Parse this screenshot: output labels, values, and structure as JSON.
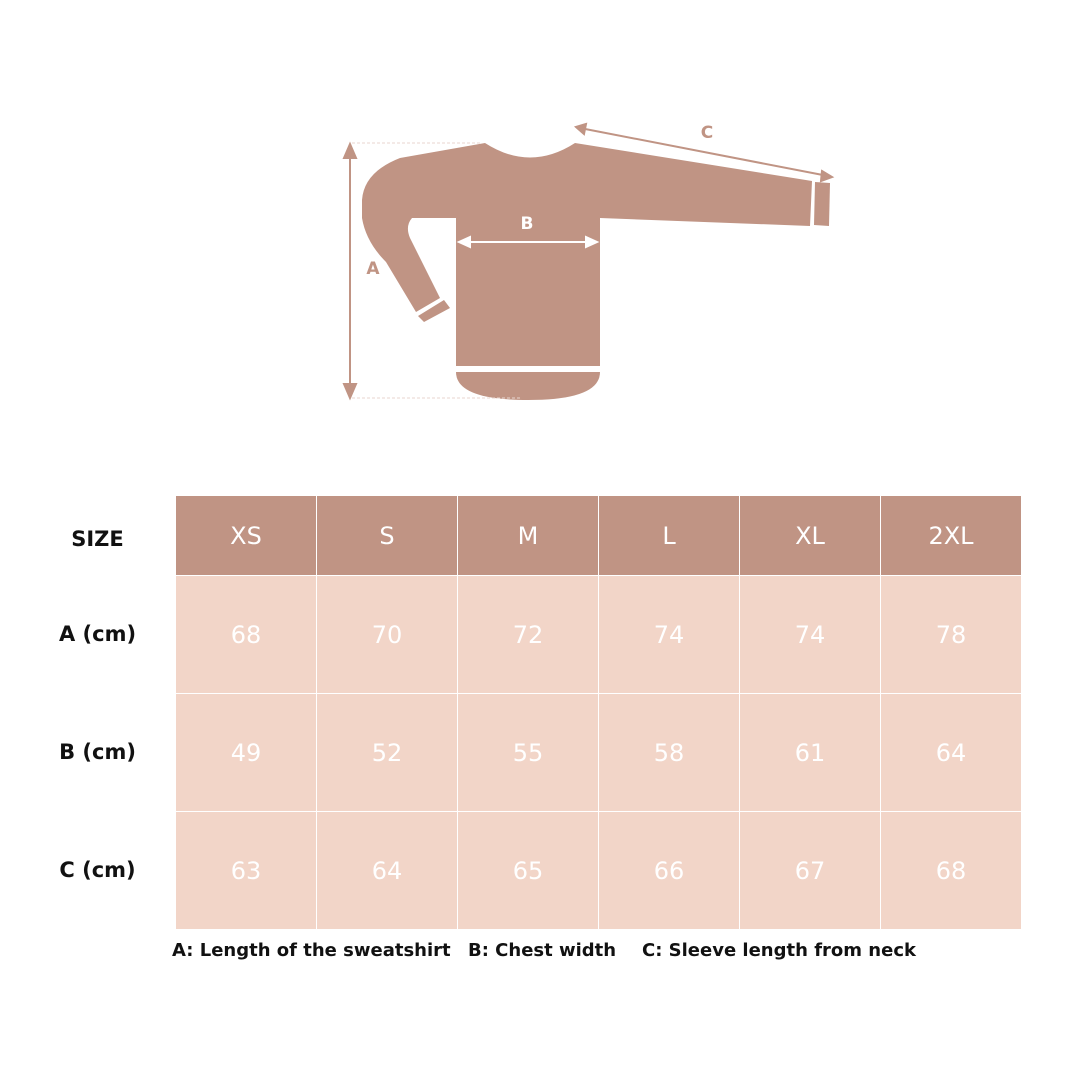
{
  "diagram": {
    "labels": [
      "A",
      "B",
      "C"
    ]
  },
  "table": {
    "corner": "SIZE",
    "sizes": [
      "XS",
      "S",
      "M",
      "L",
      "XL",
      "2XL"
    ],
    "rows": [
      {
        "label": "A (cm)",
        "values": [
          68,
          70,
          72,
          74,
          74,
          78
        ]
      },
      {
        "label": "B (cm)",
        "values": [
          49,
          52,
          55,
          58,
          61,
          64
        ]
      },
      {
        "label": "C (cm)",
        "values": [
          63,
          64,
          65,
          66,
          67,
          68
        ]
      }
    ]
  },
  "legend": [
    "A: Length of the sweatshirt",
    "B: Chest width",
    "C: Sleeve length from neck"
  ]
}
